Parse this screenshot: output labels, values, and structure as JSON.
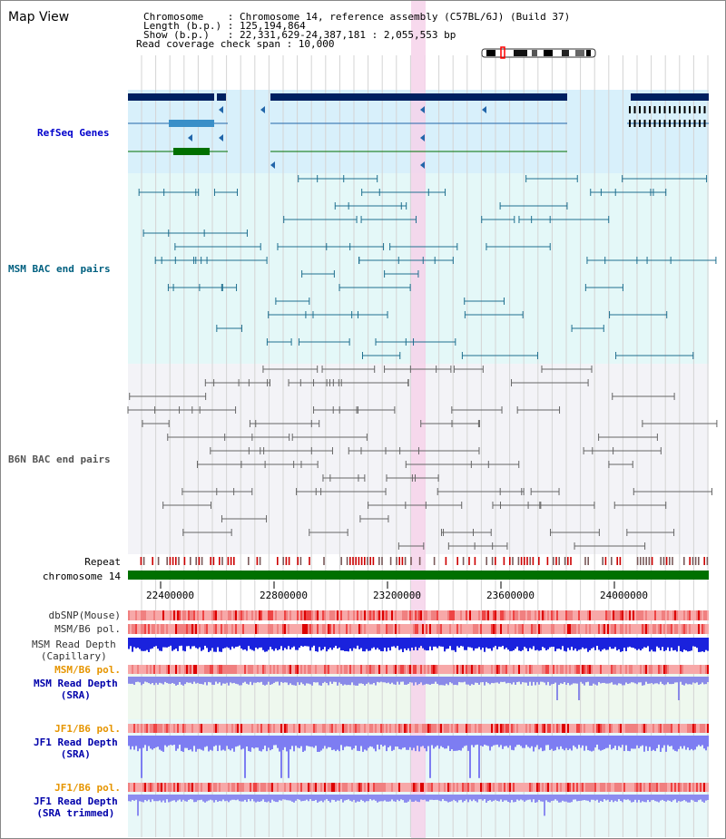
{
  "view": {
    "title": "Map View",
    "info_lines": [
      "Chromosome    : Chromosome 14, reference assembly (C57BL/6J) (Build 37)",
      "Length (b.p.) : 125,194,864",
      "Show (b.p.)   : 22,331,629-24,387,181 : 2,055,553 bp",
      "Read coverage check span : 10,000"
    ]
  },
  "tracks": {
    "refseq": {
      "label": "RefSeq Genes",
      "color": "#0000cc"
    },
    "msm_bac": {
      "label": "MSM BAC end pairs",
      "color": "#006080"
    },
    "b6n_bac": {
      "label": "B6N BAC end pairs",
      "color": "#555555"
    },
    "repeat": {
      "label": "Repeat"
    },
    "chromosome": {
      "label": "chromosome 14"
    },
    "dbsnp": {
      "label": "dbSNP(Mouse)"
    },
    "msm_b6_pol": {
      "label": "MSM/B6 pol."
    },
    "msm_read_cap": {
      "label": "MSM Read Depth\n(Capillary)"
    },
    "msm_b6_pol2": {
      "label": "MSM/B6 pol."
    },
    "msm_read_sra": {
      "label": "MSM Read Depth\n(SRA)"
    },
    "jf1_b6_pol": {
      "label": "JF1/B6 pol."
    },
    "jf1_read_sra": {
      "label": "JF1 Read Depth\n(SRA)"
    },
    "jf1_b6_pol2": {
      "label": "JF1/B6 pol."
    },
    "jf1_read_trim": {
      "label": "JF1 Read Depth\n(SRA trimmed)"
    }
  },
  "axis": {
    "ticks": [
      "22400000",
      "22800000",
      "23200000",
      "23600000",
      "24000000"
    ]
  },
  "colors": {
    "navy": "#002060",
    "orange": "#e69500",
    "blue": "#0000aa",
    "refseq_bg": "#d8f0fb",
    "msm_bg": "#e4f8f8",
    "b6n_bg": "#f3f3f7",
    "highlight": "#f6d2ea",
    "chrom": "#007000",
    "repeat_red": "#cc0000"
  }
}
